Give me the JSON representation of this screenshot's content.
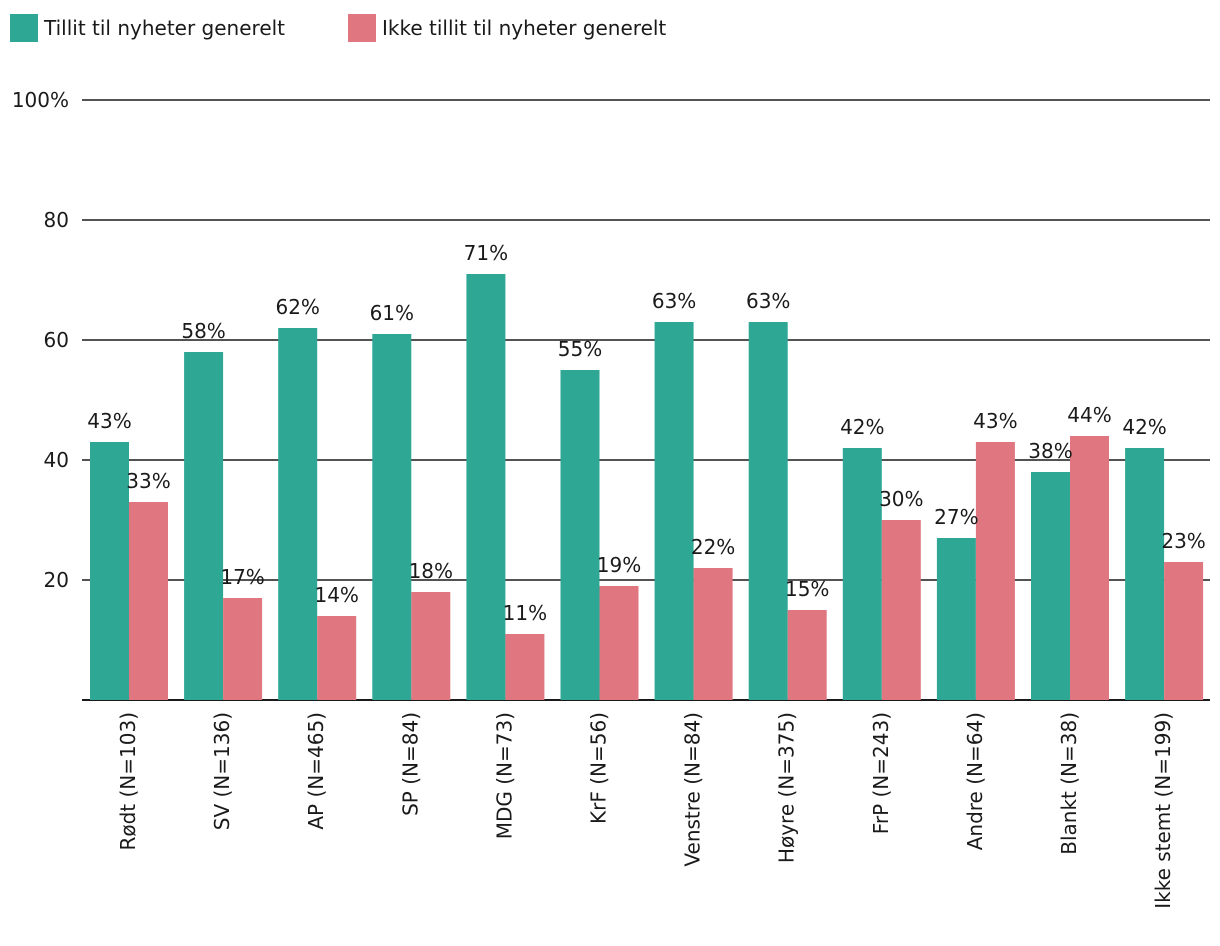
{
  "chart_data": {
    "type": "bar",
    "title": "",
    "xlabel": "",
    "ylabel": "",
    "ylim": [
      0,
      100
    ],
    "yticks": [
      {
        "value": 20,
        "label": "20"
      },
      {
        "value": 40,
        "label": "40"
      },
      {
        "value": 60,
        "label": "60"
      },
      {
        "value": 80,
        "label": "80"
      },
      {
        "value": 100,
        "label": "100%"
      }
    ],
    "categories": [
      "Rødt (N=103)",
      "SV (N=136)",
      "AP (N=465)",
      "SP (N=84)",
      "MDG (N=73)",
      "KrF (N=56)",
      "Venstre (N=84)",
      "Høyre (N=375)",
      "FrP (N=243)",
      "Andre (N=64)",
      "Blankt (N=38)",
      "Ikke stemt (N=199)"
    ],
    "series": [
      {
        "name": "Tillit til nyheter generelt",
        "color": "#2ea895",
        "values": [
          43,
          58,
          62,
          61,
          71,
          55,
          63,
          63,
          42,
          27,
          38,
          42
        ],
        "labels": [
          "43%",
          "58%",
          "62%",
          "61%",
          "71%",
          "55%",
          "63%",
          "63%",
          "42%",
          "27%",
          "38%",
          "42%"
        ]
      },
      {
        "name": "Ikke tillit til nyheter generelt",
        "color": "#e07680",
        "values": [
          33,
          17,
          14,
          18,
          11,
          19,
          22,
          15,
          30,
          43,
          44,
          23
        ],
        "labels": [
          "33%",
          "17%",
          "14%",
          "18%",
          "11%",
          "19%",
          "22%",
          "15%",
          "30%",
          "43%",
          "44%",
          "23%"
        ]
      }
    ],
    "legend": "top-left",
    "grid": true
  }
}
